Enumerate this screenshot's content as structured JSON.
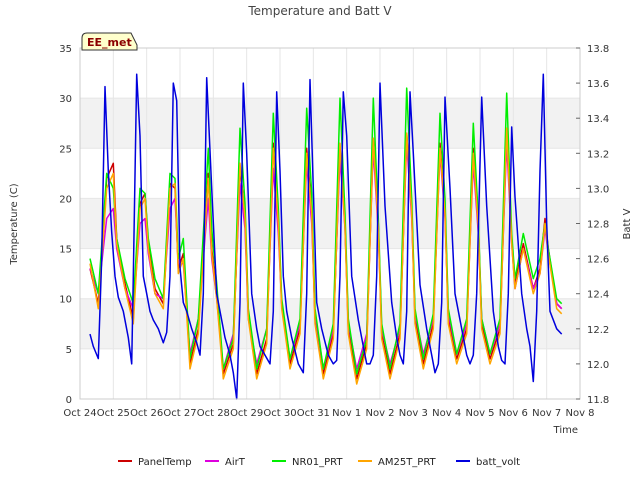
{
  "chart_data": {
    "type": "line",
    "title": "Temperature and Batt V",
    "xlabel": "Time",
    "ylabel": "Temperature (C)",
    "y2label": "Batt V",
    "badge": "EE_met",
    "xlim": [
      0,
      15
    ],
    "ylim": [
      0,
      35
    ],
    "y2lim": [
      11.8,
      13.8
    ],
    "x_tick_values": [
      0,
      1,
      2,
      3,
      4,
      5,
      6,
      7,
      8,
      9,
      10,
      11,
      12,
      13,
      14,
      15
    ],
    "x_tick_labels": [
      "Oct 24",
      "Oct 25",
      "Oct 26",
      "Oct 27",
      "Oct 28",
      "Oct 29",
      "Oct 30",
      "Oct 31",
      "Nov 1",
      "Nov 2",
      "Nov 3",
      "Nov 4",
      "Nov 5",
      "Nov 6",
      "Nov 7",
      "Nov 8"
    ],
    "y_ticks": [
      0,
      5,
      10,
      15,
      20,
      25,
      30,
      35
    ],
    "y_tick_labels": [
      "0",
      "5",
      "10",
      "15",
      "20",
      "25",
      "30",
      "35"
    ],
    "y2_ticks": [
      11.8,
      12.0,
      12.2,
      12.4,
      12.6,
      12.8,
      13.0,
      13.2,
      13.4,
      13.6,
      13.8
    ],
    "y2_tick_labels": [
      "11.8",
      "12.0",
      "12.2",
      "12.4",
      "12.6",
      "12.8",
      "13.0",
      "13.2",
      "13.4",
      "13.6",
      "13.8"
    ],
    "bands": [
      [
        5,
        10
      ],
      [
        15,
        20
      ],
      [
        25,
        30
      ]
    ],
    "legend_position": "bottom",
    "series": [
      {
        "name": "PanelTemp",
        "axis": "left",
        "color": "#cc0000",
        "x": [
          0.3,
          0.55,
          0.8,
          1.0,
          1.1,
          1.35,
          1.6,
          1.8,
          1.95,
          2.05,
          2.25,
          2.5,
          2.7,
          2.85,
          2.95,
          3.1,
          3.3,
          3.55,
          3.85,
          3.95,
          4.1,
          4.3,
          4.6,
          4.8,
          4.95,
          5.05,
          5.3,
          5.6,
          5.8,
          5.95,
          6.05,
          6.3,
          6.6,
          6.8,
          6.95,
          7.05,
          7.3,
          7.6,
          7.8,
          7.95,
          8.05,
          8.3,
          8.6,
          8.8,
          8.95,
          9.05,
          9.3,
          9.6,
          9.8,
          9.95,
          10.05,
          10.3,
          10.6,
          10.8,
          10.95,
          11.05,
          11.3,
          11.6,
          11.8,
          11.95,
          12.05,
          12.3,
          12.6,
          12.8,
          12.95,
          13.05,
          13.3,
          13.6,
          13.8,
          13.95,
          14.05,
          14.3,
          14.45
        ],
        "y": [
          13.0,
          9.5,
          22.0,
          23.5,
          16.0,
          11.5,
          8.0,
          19.5,
          20.5,
          15.5,
          11.0,
          9.5,
          21.5,
          21.0,
          13.0,
          14.5,
          3.5,
          7.0,
          22.5,
          15.0,
          10.5,
          2.5,
          5.5,
          23.0,
          18.5,
          8.5,
          2.5,
          6.0,
          25.5,
          18.0,
          9.5,
          3.5,
          7.0,
          25.0,
          19.0,
          8.0,
          2.5,
          6.5,
          25.0,
          17.5,
          7.0,
          2.0,
          5.5,
          26.0,
          17.5,
          6.5,
          2.5,
          6.5,
          26.5,
          19.0,
          8.0,
          3.5,
          7.5,
          25.5,
          19.0,
          8.0,
          4.0,
          7.0,
          25.0,
          17.5,
          7.5,
          4.0,
          7.0,
          27.0,
          16.0,
          11.5,
          15.5,
          11.0,
          13.0,
          18.0,
          15.0,
          9.5,
          9.0
        ]
      },
      {
        "name": "AirT",
        "axis": "left",
        "color": "#dd00dd",
        "x": [
          0.3,
          0.55,
          0.8,
          1.0,
          1.1,
          1.35,
          1.6,
          1.8,
          1.95,
          2.05,
          2.25,
          2.5,
          2.7,
          2.85,
          2.95,
          3.1,
          3.3,
          3.55,
          3.85,
          3.95,
          4.1,
          4.3,
          4.6,
          4.8,
          4.95,
          5.05,
          5.3,
          5.6,
          5.8,
          5.95,
          6.05,
          6.3,
          6.6,
          6.8,
          6.95,
          7.05,
          7.3,
          7.6,
          7.8,
          7.95,
          8.05,
          8.3,
          8.6,
          8.8,
          8.95,
          9.05,
          9.3,
          9.6,
          9.8,
          9.95,
          10.05,
          10.3,
          10.6,
          10.8,
          10.95,
          11.05,
          11.3,
          11.6,
          11.8,
          11.95,
          12.05,
          12.3,
          12.6,
          12.8,
          12.95,
          13.05,
          13.3,
          13.6,
          13.8,
          13.95,
          14.05,
          14.3,
          14.45
        ],
        "y": [
          13.0,
          10.5,
          18.0,
          19.0,
          15.0,
          11.0,
          9.0,
          17.5,
          18.0,
          14.5,
          10.5,
          10.0,
          19.0,
          20.0,
          13.5,
          13.5,
          4.5,
          8.0,
          20.0,
          14.0,
          10.0,
          3.0,
          6.5,
          21.5,
          17.0,
          8.0,
          3.5,
          7.0,
          23.0,
          16.5,
          9.5,
          4.0,
          7.5,
          23.5,
          17.5,
          8.5,
          3.0,
          7.0,
          24.0,
          17.0,
          7.5,
          3.0,
          6.5,
          25.0,
          16.5,
          7.0,
          3.5,
          7.0,
          25.5,
          18.0,
          8.5,
          4.5,
          8.0,
          24.5,
          18.0,
          8.5,
          4.5,
          7.5,
          23.5,
          16.5,
          8.0,
          4.5,
          7.5,
          25.5,
          15.5,
          11.0,
          15.0,
          11.0,
          12.5,
          17.0,
          14.5,
          9.5,
          9.0
        ]
      },
      {
        "name": "NR01_PRT",
        "axis": "left",
        "color": "#00ee00",
        "x": [
          0.3,
          0.55,
          0.8,
          1.0,
          1.1,
          1.35,
          1.6,
          1.8,
          1.95,
          2.05,
          2.25,
          2.5,
          2.7,
          2.85,
          2.95,
          3.1,
          3.3,
          3.55,
          3.85,
          3.95,
          4.1,
          4.3,
          4.6,
          4.8,
          4.95,
          5.05,
          5.3,
          5.6,
          5.8,
          5.95,
          6.05,
          6.3,
          6.6,
          6.8,
          6.95,
          7.05,
          7.3,
          7.6,
          7.8,
          7.95,
          8.05,
          8.3,
          8.6,
          8.8,
          8.95,
          9.05,
          9.3,
          9.6,
          9.8,
          9.95,
          10.05,
          10.3,
          10.6,
          10.8,
          10.95,
          11.05,
          11.3,
          11.6,
          11.8,
          11.95,
          12.05,
          12.3,
          12.6,
          12.8,
          12.95,
          13.05,
          13.3,
          13.6,
          13.8,
          13.95,
          14.05,
          14.3,
          14.45
        ],
        "y": [
          14.0,
          10.5,
          22.5,
          21.0,
          16.0,
          12.0,
          9.5,
          21.0,
          20.5,
          16.0,
          12.0,
          10.0,
          22.5,
          22.0,
          14.0,
          16.0,
          4.0,
          8.0,
          25.0,
          17.0,
          11.5,
          3.0,
          6.0,
          27.0,
          19.5,
          9.0,
          3.0,
          7.0,
          28.5,
          19.0,
          10.0,
          4.0,
          8.0,
          29.0,
          20.5,
          9.0,
          3.0,
          7.5,
          30.0,
          18.5,
          8.0,
          2.5,
          6.0,
          30.0,
          18.0,
          7.5,
          3.0,
          7.5,
          31.0,
          20.0,
          9.0,
          4.0,
          8.5,
          28.5,
          20.0,
          9.0,
          4.5,
          8.0,
          27.5,
          18.0,
          8.0,
          4.5,
          8.0,
          30.5,
          16.5,
          12.0,
          16.5,
          12.0,
          14.0,
          17.5,
          15.0,
          10.0,
          9.5
        ]
      },
      {
        "name": "AM25T_PRT",
        "axis": "left",
        "color": "#ffa500",
        "x": [
          0.3,
          0.55,
          0.8,
          1.0,
          1.1,
          1.35,
          1.6,
          1.8,
          1.95,
          2.05,
          2.25,
          2.5,
          2.7,
          2.85,
          2.95,
          3.1,
          3.3,
          3.55,
          3.85,
          3.95,
          4.1,
          4.3,
          4.6,
          4.8,
          4.95,
          5.05,
          5.3,
          5.6,
          5.8,
          5.95,
          6.05,
          6.3,
          6.6,
          6.8,
          6.95,
          7.05,
          7.3,
          7.6,
          7.8,
          7.95,
          8.05,
          8.3,
          8.6,
          8.8,
          8.95,
          9.05,
          9.3,
          9.6,
          9.8,
          9.95,
          10.05,
          10.3,
          10.6,
          10.8,
          10.95,
          11.05,
          11.3,
          11.6,
          11.8,
          11.95,
          12.05,
          12.3,
          12.6,
          12.8,
          12.95,
          13.05,
          13.3,
          13.6,
          13.8,
          13.95,
          14.05,
          14.3,
          14.45
        ],
        "y": [
          13.5,
          9.0,
          21.0,
          22.5,
          15.5,
          11.0,
          7.5,
          19.0,
          20.0,
          15.0,
          10.5,
          9.0,
          21.0,
          21.5,
          12.5,
          14.0,
          3.0,
          6.5,
          22.0,
          14.5,
          10.0,
          2.0,
          5.0,
          23.5,
          18.0,
          8.0,
          2.0,
          5.5,
          25.0,
          17.5,
          9.0,
          3.0,
          6.5,
          24.5,
          18.5,
          7.5,
          2.0,
          6.0,
          25.5,
          17.0,
          6.5,
          1.5,
          5.0,
          26.0,
          17.0,
          6.0,
          2.0,
          6.0,
          26.5,
          18.5,
          7.5,
          3.0,
          7.0,
          25.0,
          18.5,
          7.5,
          3.5,
          6.5,
          24.5,
          17.0,
          7.0,
          3.5,
          6.5,
          27.0,
          15.5,
          11.0,
          15.0,
          10.5,
          12.5,
          17.5,
          14.5,
          9.0,
          8.5
        ]
      },
      {
        "name": "batt_volt",
        "axis": "right",
        "color": "#0000dd",
        "x": [
          0.3,
          0.4,
          0.55,
          0.65,
          0.75,
          0.85,
          0.95,
          1.05,
          1.15,
          1.3,
          1.45,
          1.55,
          1.6,
          1.7,
          1.8,
          1.9,
          2.0,
          2.1,
          2.2,
          2.35,
          2.5,
          2.6,
          2.7,
          2.8,
          2.9,
          3.0,
          3.1,
          3.2,
          3.35,
          3.5,
          3.6,
          3.7,
          3.8,
          3.95,
          4.1,
          4.2,
          4.35,
          4.5,
          4.6,
          4.7,
          4.8,
          4.9,
          5.0,
          5.15,
          5.3,
          5.4,
          5.55,
          5.7,
          5.8,
          5.9,
          6.0,
          6.1,
          6.2,
          6.35,
          6.55,
          6.7,
          6.8,
          6.9,
          7.0,
          7.1,
          7.25,
          7.45,
          7.6,
          7.7,
          7.8,
          7.9,
          8.0,
          8.15,
          8.35,
          8.5,
          8.6,
          8.7,
          8.8,
          8.9,
          9.0,
          9.15,
          9.35,
          9.5,
          9.6,
          9.7,
          9.8,
          9.9,
          10.0,
          10.2,
          10.4,
          10.55,
          10.65,
          10.75,
          10.85,
          10.95,
          11.1,
          11.25,
          11.45,
          11.6,
          11.7,
          11.8,
          11.9,
          12.05,
          12.2,
          12.4,
          12.55,
          12.65,
          12.75,
          12.85,
          12.95,
          13.05,
          13.25,
          13.4,
          13.5,
          13.6,
          13.7,
          13.8,
          13.9,
          14.0,
          14.1,
          14.3,
          14.45
        ],
        "y": [
          12.17,
          12.1,
          12.03,
          12.6,
          13.58,
          13.1,
          12.75,
          12.5,
          12.38,
          12.3,
          12.15,
          12.0,
          12.5,
          13.65,
          13.3,
          12.5,
          12.4,
          12.3,
          12.25,
          12.2,
          12.12,
          12.18,
          12.5,
          13.6,
          13.5,
          12.55,
          12.35,
          12.3,
          12.2,
          12.12,
          12.05,
          12.4,
          13.63,
          13.0,
          12.4,
          12.3,
          12.15,
          12.05,
          11.95,
          11.8,
          12.35,
          13.6,
          13.2,
          12.4,
          12.2,
          12.1,
          12.05,
          12.0,
          12.3,
          13.55,
          13.1,
          12.5,
          12.3,
          12.15,
          12.0,
          11.95,
          12.4,
          13.62,
          13.0,
          12.35,
          12.2,
          12.05,
          12.0,
          12.02,
          12.5,
          13.55,
          13.3,
          12.5,
          12.25,
          12.1,
          12.0,
          12.0,
          12.05,
          12.5,
          13.6,
          12.9,
          12.35,
          12.15,
          12.05,
          12.0,
          12.3,
          13.55,
          13.2,
          12.45,
          12.2,
          12.05,
          11.95,
          12.0,
          12.35,
          13.52,
          13.0,
          12.4,
          12.2,
          12.05,
          12.0,
          12.05,
          12.4,
          13.52,
          12.9,
          12.3,
          12.1,
          12.02,
          12.0,
          12.4,
          13.35,
          12.95,
          12.4,
          12.2,
          12.1,
          11.9,
          12.3,
          13.1,
          13.65,
          12.8,
          12.3,
          12.2,
          12.17
        ]
      }
    ]
  }
}
